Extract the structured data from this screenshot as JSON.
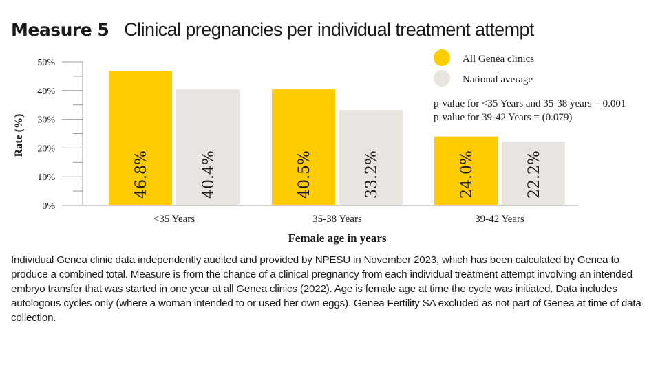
{
  "header": {
    "measure": "Measure 5",
    "title": "Clinical pregnancies per individual treatment attempt"
  },
  "chart_data": {
    "type": "bar",
    "title": "Clinical pregnancies per individual treatment attempt",
    "xlabel": "Female age in years",
    "ylabel": "Rate (%)",
    "ylim": [
      0,
      50
    ],
    "yticks": [
      "0%",
      "10%",
      "20%",
      "30%",
      "40%",
      "50%"
    ],
    "categories": [
      "<35 Years",
      "35-38 Years",
      "39-42 Years"
    ],
    "series": [
      {
        "name": "All Genea clinics",
        "color": "#FFCC00",
        "values": [
          46.8,
          40.5,
          24.0
        ],
        "labels": [
          "46.8%",
          "40.5%",
          "24.0%"
        ]
      },
      {
        "name": "National average",
        "color": "#E8E4DF",
        "values": [
          40.4,
          33.2,
          22.2
        ],
        "labels": [
          "40.4%",
          "33.2%",
          "22.2%"
        ]
      }
    ],
    "legend_position": "top-right",
    "annotations": [
      "p-value for <35 Years and 35-38 years = 0.001",
      "p-value for 39-42 Years = (0.079)"
    ]
  },
  "caption": "Individual Genea clinic data independently audited and provided by NPESU in November 2023, which has been calculated by Genea to produce a combined total. Measure is from the chance of a clinical pregnancy from each individual treatment attempt involving an intended embryo transfer that was started in one year at all Genea clinics (2022). Age is female age at time the cycle was initiated. Data includes autologous cycles only (where a woman intended to or used her own eggs). Genea Fertility SA excluded as not part of Genea at time of data collection."
}
